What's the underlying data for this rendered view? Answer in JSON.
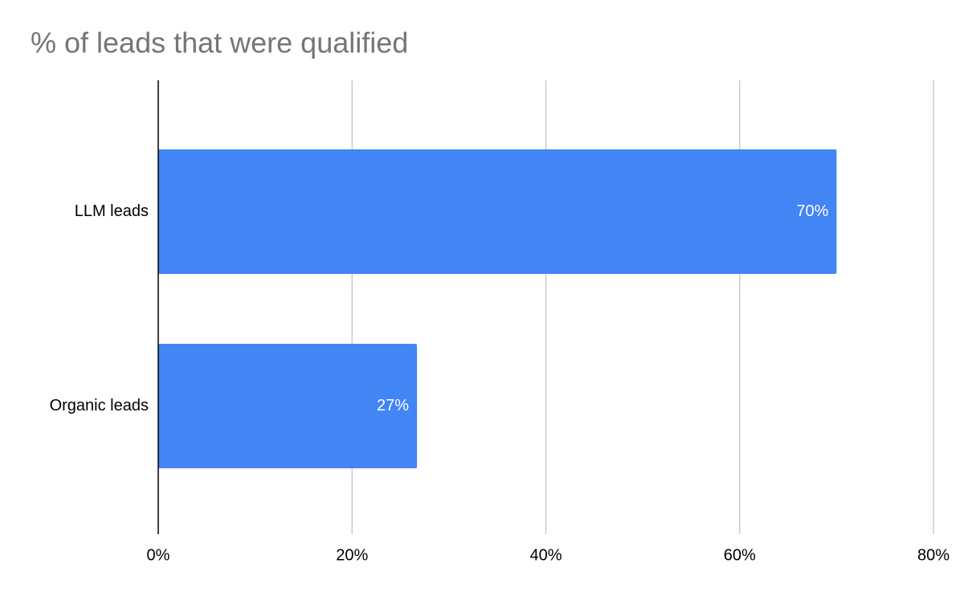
{
  "chart_data": {
    "type": "hbar",
    "title": "% of leads that were qualified",
    "categories": [
      "LLM leads",
      "Organic leads"
    ],
    "values": [
      70,
      26.7
    ],
    "value_labels": [
      "70%",
      "27%"
    ],
    "color": "#4285f4",
    "xlim": [
      0,
      80
    ],
    "xticks": [
      {
        "value": 0,
        "label": "0%"
      },
      {
        "value": 20,
        "label": "20%"
      },
      {
        "value": 40,
        "label": "40%"
      },
      {
        "value": 60,
        "label": "60%"
      },
      {
        "value": 80,
        "label": "80%"
      }
    ],
    "grid": true
  }
}
